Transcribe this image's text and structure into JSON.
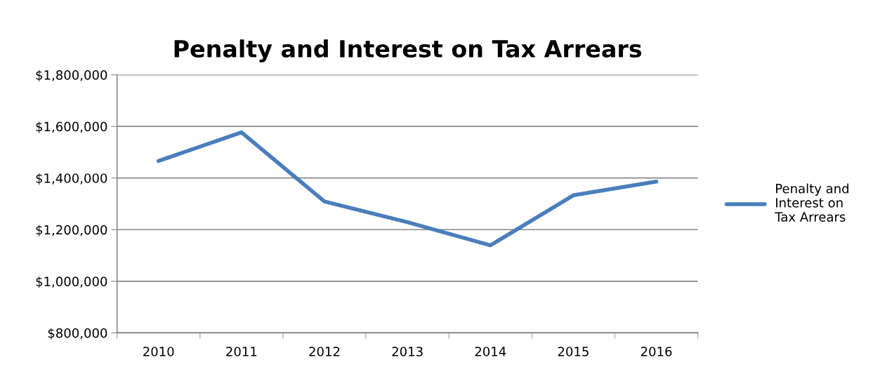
{
  "chart_data": {
    "type": "line",
    "title": "Penalty and Interest on Tax Arrears",
    "categories": [
      "2010",
      "2011",
      "2012",
      "2013",
      "2014",
      "2015",
      "2016"
    ],
    "series": [
      {
        "name": "Penalty and Interest on Tax Arrears",
        "color": "#4a7ebb",
        "values": [
          1466000,
          1577000,
          1309000,
          1229000,
          1139000,
          1333000,
          1386000
        ]
      }
    ],
    "ylim": [
      800000,
      1800000
    ],
    "yticks": [
      {
        "value": 800000,
        "label": "$800,000"
      },
      {
        "value": 1000000,
        "label": "$1,000,000"
      },
      {
        "value": 1200000,
        "label": "$1,200,000"
      },
      {
        "value": 1400000,
        "label": "$1,400,000"
      },
      {
        "value": 1600000,
        "label": "$1,600,000"
      },
      {
        "value": 1800000,
        "label": "$1,800,000"
      }
    ],
    "grid": "y",
    "legend": "right",
    "marker": "none",
    "line_style": "solid"
  }
}
